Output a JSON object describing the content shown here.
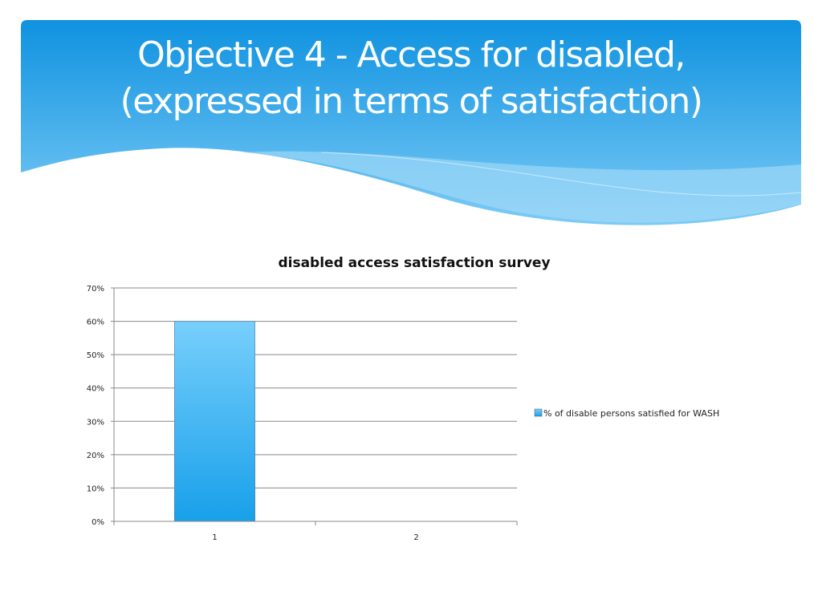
{
  "slide": {
    "title_line1": "Objective 4 - Access for disabled,",
    "title_line2": "(expressed in terms of satisfaction)",
    "accent_color": "#1a9be3"
  },
  "chart_data": {
    "type": "bar",
    "title": "disabled access satisfaction survey",
    "categories": [
      "1",
      "2"
    ],
    "series": [
      {
        "name": "% of disable persons satisfied for WASH",
        "values": [
          60,
          null
        ],
        "color": "#3aaeef"
      }
    ],
    "ylim": [
      0,
      70
    ],
    "yticks": [
      0,
      10,
      20,
      30,
      40,
      50,
      60,
      70
    ],
    "ytick_labels": [
      "0%",
      "10%",
      "20%",
      "30%",
      "40%",
      "50%",
      "60%",
      "70%"
    ],
    "xlabel": "",
    "ylabel": "",
    "grid": true,
    "legend_position": "right"
  }
}
